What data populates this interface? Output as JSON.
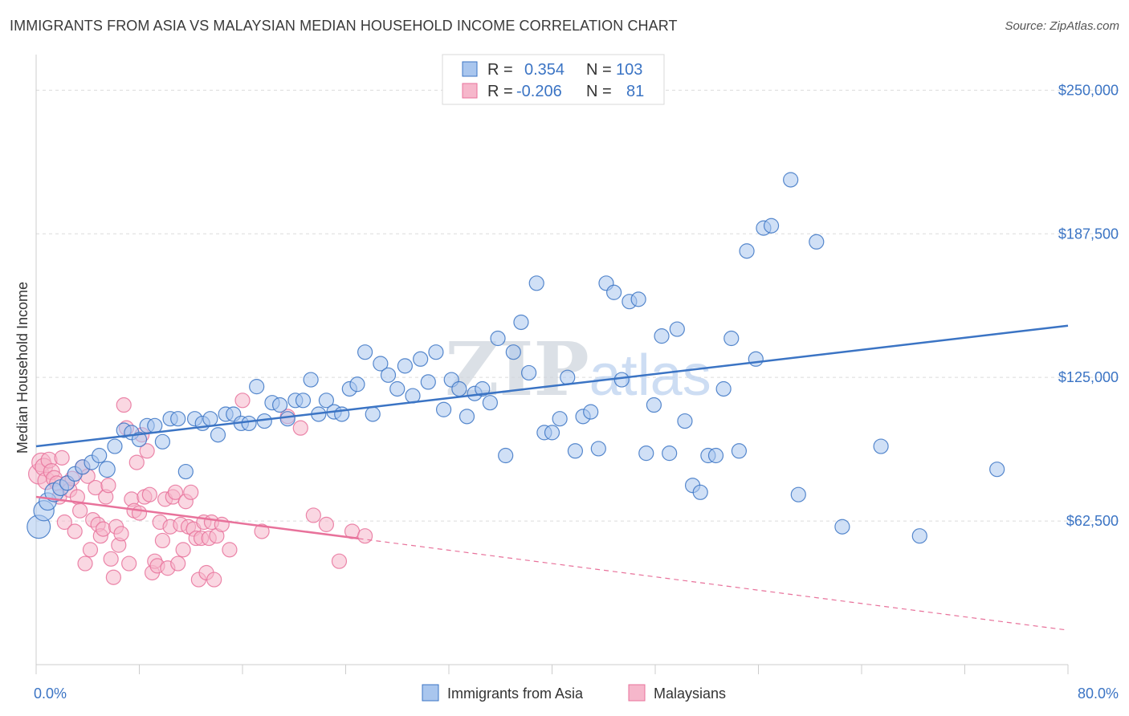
{
  "title": "IMMIGRANTS FROM ASIA VS MALAYSIAN MEDIAN HOUSEHOLD INCOME CORRELATION CHART",
  "source": "Source: ZipAtlas.com",
  "watermark": "ZIPatlas",
  "colors": {
    "blue": "#3b74c4",
    "blue_fill": "#a9c6ee",
    "pink": "#e8729b",
    "pink_fill": "#f6b7cb",
    "grid": "#dcdcdc"
  },
  "legend": {
    "rows": [
      {
        "r_label": "R =",
        "r_value": "0.354",
        "n_label": "N =",
        "n_value": "103"
      },
      {
        "r_label": "R =",
        "r_value": "-0.206",
        "n_label": "N =",
        "n_value": "81"
      }
    ]
  },
  "bottom_legend": [
    "Immigrants from Asia",
    "Malaysians"
  ],
  "chart_data": {
    "type": "scatter",
    "xlabel": "",
    "ylabel": "Median Household Income",
    "x_tick_labels": [
      "0.0%",
      "80.0%"
    ],
    "y_tick_labels": [
      "$62,500",
      "$125,000",
      "$187,500",
      "$250,000"
    ],
    "xlim": [
      0,
      80
    ],
    "ylim": [
      0,
      262000
    ],
    "yticks": [
      62500,
      125000,
      187500,
      250000
    ],
    "grid": true,
    "series": [
      {
        "name": "Immigrants from Asia",
        "color": "#3b74c4",
        "trend": {
          "x": [
            0,
            80
          ],
          "y": [
            95000,
            147500
          ],
          "dashed_from": null
        },
        "points": [
          [
            0.2,
            60000,
            1.6
          ],
          [
            0.6,
            67000,
            1.4
          ],
          [
            0.9,
            71000,
            1.2
          ],
          [
            1.4,
            75000,
            1.3
          ],
          [
            1.9,
            77000,
            1.1
          ],
          [
            2.4,
            79000,
            1.0
          ],
          [
            3.0,
            83000,
            1.0
          ],
          [
            3.6,
            86000,
            1.0
          ],
          [
            4.3,
            88000,
            1.0
          ],
          [
            4.9,
            91000,
            1.0
          ],
          [
            5.5,
            85000,
            1.1
          ],
          [
            6.1,
            95000,
            1.0
          ],
          [
            6.8,
            102000,
            1.0
          ],
          [
            7.4,
            101000,
            1.0
          ],
          [
            8.0,
            98000,
            1.0
          ],
          [
            8.6,
            104000,
            1.0
          ],
          [
            9.2,
            104000,
            1.0
          ],
          [
            9.8,
            97000,
            1.0
          ],
          [
            10.4,
            107000,
            1.0
          ],
          [
            11.0,
            107000,
            1.0
          ],
          [
            11.6,
            84000,
            1.0
          ],
          [
            12.3,
            107000,
            1.0
          ],
          [
            12.9,
            105000,
            1.0
          ],
          [
            13.5,
            107000,
            1.0
          ],
          [
            14.1,
            100000,
            1.0
          ],
          [
            14.7,
            109000,
            1.0
          ],
          [
            15.3,
            109000,
            1.0
          ],
          [
            15.9,
            105000,
            1.0
          ],
          [
            16.5,
            105000,
            1.0
          ],
          [
            17.1,
            121000,
            1.0
          ],
          [
            17.7,
            106000,
            1.0
          ],
          [
            18.3,
            114000,
            1.0
          ],
          [
            18.9,
            113000,
            1.0
          ],
          [
            19.5,
            107000,
            1.0
          ],
          [
            20.1,
            115000,
            1.0
          ],
          [
            20.7,
            115000,
            1.0
          ],
          [
            21.3,
            124000,
            1.0
          ],
          [
            21.9,
            109000,
            1.0
          ],
          [
            22.5,
            115000,
            1.0
          ],
          [
            23.1,
            110000,
            1.0
          ],
          [
            23.7,
            109000,
            1.0
          ],
          [
            24.3,
            120000,
            1.0
          ],
          [
            24.9,
            122000,
            1.0
          ],
          [
            25.5,
            136000,
            1.0
          ],
          [
            26.1,
            109000,
            1.0
          ],
          [
            26.7,
            131000,
            1.0
          ],
          [
            27.3,
            126000,
            1.0
          ],
          [
            28.0,
            120000,
            1.0
          ],
          [
            28.6,
            130000,
            1.0
          ],
          [
            29.2,
            117000,
            1.0
          ],
          [
            29.8,
            133000,
            1.0
          ],
          [
            30.4,
            123000,
            1.0
          ],
          [
            31.0,
            136000,
            1.0
          ],
          [
            31.6,
            111000,
            1.0
          ],
          [
            32.2,
            124000,
            1.0
          ],
          [
            32.8,
            120000,
            1.0
          ],
          [
            33.4,
            108000,
            1.0
          ],
          [
            34.0,
            118000,
            1.0
          ],
          [
            34.6,
            120000,
            1.0
          ],
          [
            35.2,
            114000,
            1.0
          ],
          [
            35.8,
            142000,
            1.0
          ],
          [
            36.4,
            91000,
            1.0
          ],
          [
            37.0,
            136000,
            1.0
          ],
          [
            37.6,
            149000,
            1.0
          ],
          [
            38.2,
            127000,
            1.0
          ],
          [
            38.8,
            166000,
            1.0
          ],
          [
            39.4,
            101000,
            1.0
          ],
          [
            40.0,
            101000,
            1.0
          ],
          [
            40.6,
            107000,
            1.0
          ],
          [
            41.2,
            125000,
            1.0
          ],
          [
            41.8,
            93000,
            1.0
          ],
          [
            42.4,
            108000,
            1.0
          ],
          [
            43.0,
            110000,
            1.0
          ],
          [
            43.6,
            94000,
            1.0
          ],
          [
            44.2,
            166000,
            1.0
          ],
          [
            44.8,
            162000,
            1.0
          ],
          [
            45.4,
            124000,
            1.0
          ],
          [
            46.0,
            158000,
            1.0
          ],
          [
            46.7,
            159000,
            1.0
          ],
          [
            47.3,
            92000,
            1.0
          ],
          [
            47.9,
            113000,
            1.0
          ],
          [
            48.5,
            143000,
            1.0
          ],
          [
            49.1,
            92000,
            1.0
          ],
          [
            49.7,
            146000,
            1.0
          ],
          [
            50.3,
            106000,
            1.0
          ],
          [
            50.9,
            78000,
            1.0
          ],
          [
            51.5,
            75000,
            1.0
          ],
          [
            52.1,
            91000,
            1.0
          ],
          [
            52.7,
            91000,
            1.0
          ],
          [
            53.3,
            120000,
            1.0
          ],
          [
            53.9,
            142000,
            1.0
          ],
          [
            54.5,
            93000,
            1.0
          ],
          [
            55.1,
            180000,
            1.0
          ],
          [
            55.8,
            133000,
            1.0
          ],
          [
            56.4,
            190000,
            1.0
          ],
          [
            57.0,
            191000,
            1.0
          ],
          [
            58.5,
            211000,
            1.0
          ],
          [
            59.1,
            74000,
            1.0
          ],
          [
            60.5,
            184000,
            1.0
          ],
          [
            62.5,
            60000,
            1.0
          ],
          [
            65.5,
            95000,
            1.0
          ],
          [
            68.5,
            56000,
            1.0
          ],
          [
            74.5,
            85000,
            1.0
          ]
        ]
      },
      {
        "name": "Malaysians",
        "color": "#e8729b",
        "trend": {
          "x": [
            0,
            80
          ],
          "y": [
            73000,
            15000
          ],
          "dashed_from": 25
        },
        "points": [
          [
            0.2,
            83000,
            1.4
          ],
          [
            0.4,
            88000,
            1.3
          ],
          [
            0.6,
            86000,
            1.2
          ],
          [
            0.8,
            80000,
            1.2
          ],
          [
            1.0,
            89000,
            1.1
          ],
          [
            1.2,
            84000,
            1.1
          ],
          [
            1.4,
            81000,
            1.1
          ],
          [
            1.6,
            79000,
            1.0
          ],
          [
            1.8,
            73000,
            1.0
          ],
          [
            2.0,
            90000,
            1.0
          ],
          [
            2.2,
            62000,
            1.0
          ],
          [
            2.4,
            79000,
            1.0
          ],
          [
            2.6,
            76000,
            1.0
          ],
          [
            2.8,
            81000,
            1.0
          ],
          [
            3.0,
            58000,
            1.0
          ],
          [
            3.2,
            73000,
            1.0
          ],
          [
            3.4,
            67000,
            1.0
          ],
          [
            3.6,
            86000,
            1.0
          ],
          [
            3.8,
            44000,
            1.0
          ],
          [
            4.0,
            82000,
            1.0
          ],
          [
            4.2,
            50000,
            1.0
          ],
          [
            4.4,
            63000,
            1.0
          ],
          [
            4.6,
            77000,
            1.0
          ],
          [
            4.8,
            61000,
            1.0
          ],
          [
            5.0,
            56000,
            1.0
          ],
          [
            5.2,
            59000,
            1.0
          ],
          [
            5.4,
            73000,
            1.0
          ],
          [
            5.6,
            78000,
            1.0
          ],
          [
            5.8,
            46000,
            1.0
          ],
          [
            6.0,
            38000,
            1.0
          ],
          [
            6.2,
            60000,
            1.0
          ],
          [
            6.4,
            52000,
            1.0
          ],
          [
            6.6,
            57000,
            1.0
          ],
          [
            6.8,
            113000,
            1.0
          ],
          [
            7.0,
            103000,
            1.0
          ],
          [
            7.2,
            44000,
            1.0
          ],
          [
            7.4,
            72000,
            1.0
          ],
          [
            7.6,
            67000,
            1.0
          ],
          [
            7.8,
            88000,
            1.0
          ],
          [
            8.0,
            66000,
            1.0
          ],
          [
            8.2,
            100000,
            1.0
          ],
          [
            8.4,
            73000,
            1.0
          ],
          [
            8.6,
            93000,
            1.0
          ],
          [
            8.8,
            74000,
            1.0
          ],
          [
            9.0,
            40000,
            1.0
          ],
          [
            9.2,
            45000,
            1.0
          ],
          [
            9.4,
            43000,
            1.0
          ],
          [
            9.6,
            62000,
            1.0
          ],
          [
            9.8,
            54000,
            1.0
          ],
          [
            10.0,
            72000,
            1.0
          ],
          [
            10.2,
            42000,
            1.0
          ],
          [
            10.4,
            60000,
            1.0
          ],
          [
            10.6,
            73000,
            1.0
          ],
          [
            10.8,
            75000,
            1.0
          ],
          [
            11.0,
            44000,
            1.0
          ],
          [
            11.2,
            61000,
            1.0
          ],
          [
            11.4,
            50000,
            1.0
          ],
          [
            11.6,
            71000,
            1.0
          ],
          [
            11.8,
            60000,
            1.0
          ],
          [
            12.0,
            75000,
            1.0
          ],
          [
            12.2,
            59000,
            1.0
          ],
          [
            12.4,
            55000,
            1.0
          ],
          [
            12.6,
            37000,
            1.0
          ],
          [
            12.8,
            55000,
            1.0
          ],
          [
            13.0,
            62000,
            1.0
          ],
          [
            13.2,
            40000,
            1.0
          ],
          [
            13.4,
            55000,
            1.0
          ],
          [
            13.6,
            62000,
            1.0
          ],
          [
            13.8,
            37000,
            1.0
          ],
          [
            14.0,
            56000,
            1.0
          ],
          [
            14.4,
            61000,
            1.0
          ],
          [
            15.0,
            50000,
            1.0
          ],
          [
            16.0,
            115000,
            1.0
          ],
          [
            17.5,
            58000,
            1.0
          ],
          [
            19.5,
            108000,
            1.0
          ],
          [
            20.5,
            103000,
            1.0
          ],
          [
            21.5,
            65000,
            1.0
          ],
          [
            22.5,
            61000,
            1.0
          ],
          [
            23.5,
            45000,
            1.0
          ],
          [
            24.5,
            58000,
            1.0
          ],
          [
            25.5,
            56000,
            1.0
          ]
        ]
      }
    ]
  }
}
